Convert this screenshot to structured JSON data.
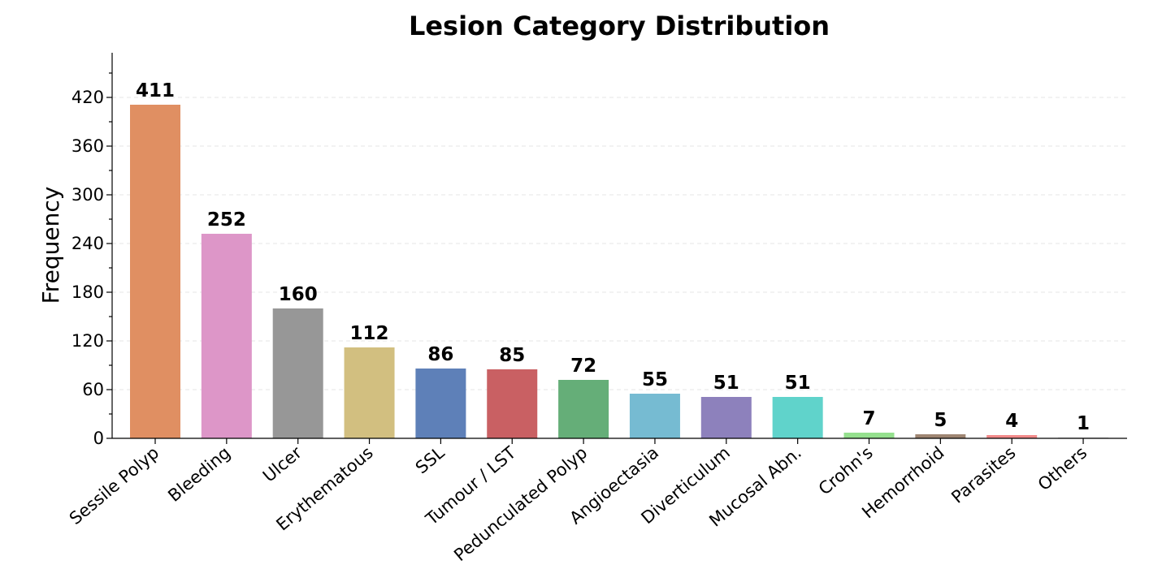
{
  "chart_data": {
    "type": "bar",
    "title": "Lesion Category Distribution",
    "xlabel": "",
    "ylabel": "Frequency",
    "ylim": [
      0,
      480
    ],
    "yticks": [
      0,
      60,
      120,
      180,
      240,
      300,
      360,
      420
    ],
    "grid": true,
    "categories": [
      "Sessile Polyp",
      "Bleeding",
      "Ulcer",
      "Erythematous",
      "SSL",
      "Tumour / LST",
      "Pedunculated Polyp",
      "Angioectasia",
      "Diverticulum",
      "Mucosal Abn.",
      "Crohn's",
      "Hemorrhoid",
      "Parasites",
      "Others"
    ],
    "values": [
      411,
      252,
      160,
      112,
      86,
      85,
      72,
      55,
      51,
      51,
      7,
      5,
      4,
      1
    ],
    "value_labels": [
      "411",
      "252",
      "160",
      "112",
      "86",
      "85",
      "72",
      "55",
      "51",
      "51",
      "7",
      "5",
      "4",
      "1"
    ],
    "colors": [
      "#e08f62",
      "#dd96c8",
      "#979797",
      "#d2bf80",
      "#5e80b8",
      "#c96063",
      "#65ae78",
      "#76bbd2",
      "#8d81bc",
      "#60d3cb",
      "#95e08e",
      "#9e8572",
      "#f28a8a",
      "#cccccc"
    ]
  }
}
